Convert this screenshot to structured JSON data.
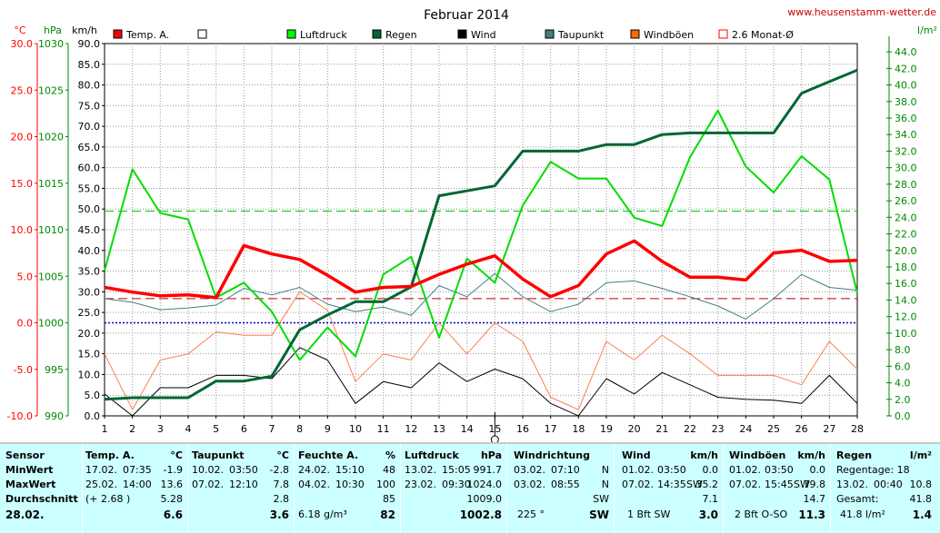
{
  "header": {
    "title": "Februar 2014",
    "website": "www.heusenstamm-wetter.de",
    "unit_celsius": "°C",
    "unit_hpa": "hPa",
    "unit_kmh": "km/h",
    "unit_rain": "l/m²"
  },
  "legend": [
    {
      "label": "Temp. A.",
      "color": "#ff0000",
      "type": "filled"
    },
    {
      "label": "",
      "color": "#ffffff",
      "type": "empty"
    },
    {
      "label": "Luftdruck",
      "color": "#00ff00",
      "type": "filled"
    },
    {
      "label": "Regen",
      "color": "#006633",
      "type": "filled"
    },
    {
      "label": "Wind",
      "color": "#000000",
      "type": "filled"
    },
    {
      "label": "Taupunkt",
      "color": "#408080",
      "type": "filled"
    },
    {
      "label": "Windböen",
      "color": "#ff6600",
      "type": "filled"
    },
    {
      "label": "2.6 Monat-Ø",
      "color": "#ff0000",
      "type": "outline"
    }
  ],
  "colors": {
    "temp": "#ff0000",
    "pressure": "#00dd00",
    "rain": "#006633",
    "wind": "#000000",
    "dewpoint": "#408080",
    "gusts": "#ff7f50",
    "avg_temp_line": "#c00000",
    "pressure_ref_line": "#00cc00",
    "zero_line": "#0000cc",
    "axis_temp": "#ff0000",
    "axis_pressure": "#008800",
    "axis_rain": "#008800",
    "stats_bg": "#ccffff"
  },
  "chart_data": {
    "type": "line",
    "x": [
      1,
      2,
      3,
      4,
      5,
      6,
      7,
      8,
      9,
      10,
      11,
      12,
      13,
      14,
      15,
      16,
      17,
      18,
      19,
      20,
      21,
      22,
      23,
      24,
      25,
      26,
      27,
      28
    ],
    "axes": {
      "temp_celsius": {
        "range": [
          -10,
          30
        ],
        "ticks": [
          "30.0",
          "25.0",
          "20.0",
          "15.0",
          "10.0",
          "5.0",
          "0.0",
          "-5.0",
          "-10.0"
        ]
      },
      "pressure_hpa": {
        "range": [
          990,
          1030
        ],
        "ticks": [
          "1030",
          "1025",
          "1020",
          "1015",
          "1010",
          "1005",
          "1000",
          "995",
          "990"
        ]
      },
      "wind_kmh": {
        "range": [
          0,
          90
        ],
        "ticks": [
          "90.0",
          "85.0",
          "80.0",
          "75.0",
          "70.0",
          "65.0",
          "60.0",
          "55.0",
          "50.0",
          "45.0",
          "40.0",
          "35.0",
          "30.0",
          "25.0",
          "20.0",
          "15.0",
          "10.0",
          "5.0",
          "0.0"
        ]
      },
      "rain_lm2": {
        "range": [
          0,
          45
        ],
        "ticks": [
          "44.0",
          "42.0",
          "40.0",
          "38.0",
          "36.0",
          "34.0",
          "32.0",
          "30.0",
          "28.0",
          "26.0",
          "24.0",
          "22.0",
          "20.0",
          "18.0",
          "16.0",
          "14.0",
          "12.0",
          "10.0",
          "8.0",
          "6.0",
          "4.0",
          "2.0",
          "0.0"
        ]
      }
    },
    "x_ticks": [
      "1",
      "2",
      "3",
      "4",
      "5",
      "6",
      "7",
      "8",
      "9",
      "10",
      "11",
      "12",
      "13",
      "14",
      "15",
      "16",
      "17",
      "18",
      "19",
      "20",
      "21",
      "22",
      "23",
      "24",
      "25",
      "26",
      "27",
      "28"
    ],
    "selected_day": 15,
    "reference_lines": {
      "monthly_avg_temp": 2.6,
      "pressure_ref": 1012,
      "zero_temp": 0
    },
    "series": [
      {
        "name": "Temp. A.",
        "axis": "temp_celsius",
        "values": [
          3.8,
          3.3,
          2.9,
          3.0,
          2.7,
          8.3,
          7.4,
          6.8,
          5.1,
          3.3,
          3.8,
          3.9,
          5.2,
          6.3,
          7.2,
          4.7,
          2.8,
          4.0,
          7.4,
          8.8,
          6.6,
          4.9,
          4.9,
          4.6,
          7.5,
          7.8,
          6.6,
          6.7
        ]
      },
      {
        "name": "Luftdruck",
        "axis": "pressure_hpa",
        "values": [
          1005.6,
          1016.5,
          1011.8,
          1011.1,
          1002.7,
          1004.3,
          1001.2,
          996.0,
          999.5,
          996.4,
          1005.2,
          1007.1,
          998.4,
          1006.9,
          1004.3,
          1012.6,
          1017.3,
          1015.5,
          1015.5,
          1011.3,
          1010.4,
          1017.8,
          1022.8,
          1016.8,
          1014.0,
          1017.9,
          1015.4,
          1003.2
        ]
      },
      {
        "name": "Regen",
        "axis": "rain_lm2",
        "values": [
          2.0,
          2.2,
          2.2,
          2.2,
          4.2,
          4.2,
          4.8,
          10.4,
          12.2,
          13.8,
          13.8,
          15.6,
          26.6,
          27.2,
          27.8,
          32.0,
          32.0,
          32.0,
          32.8,
          32.8,
          34.0,
          34.2,
          34.2,
          34.2,
          34.2,
          39.0,
          40.4,
          41.8
        ]
      },
      {
        "name": "Wind",
        "axis": "wind_kmh",
        "values": [
          5.3,
          0.0,
          6.8,
          6.8,
          9.8,
          9.8,
          9.0,
          16.5,
          13.5,
          3.0,
          8.3,
          6.8,
          12.8,
          8.3,
          11.3,
          9.0,
          3.0,
          0.0,
          9.0,
          5.3,
          10.5,
          7.5,
          4.5,
          4.0,
          3.8,
          3.0,
          9.8,
          3.0
        ]
      },
      {
        "name": "Taupunkt",
        "axis": "temp_celsius",
        "values": [
          2.6,
          2.2,
          1.4,
          1.6,
          1.9,
          3.7,
          3.0,
          3.8,
          2.0,
          1.2,
          1.7,
          0.8,
          4.0,
          2.8,
          5.3,
          2.8,
          1.2,
          2.0,
          4.3,
          4.5,
          3.7,
          2.8,
          1.8,
          0.4,
          2.6,
          5.2,
          3.8,
          3.5
        ]
      },
      {
        "name": "Windböen",
        "axis": "wind_kmh",
        "values": [
          15.0,
          1.5,
          13.5,
          15.0,
          20.3,
          19.5,
          19.5,
          30.0,
          25.5,
          8.3,
          15.0,
          13.5,
          22.5,
          15.0,
          22.5,
          18.0,
          4.5,
          1.5,
          18.0,
          13.5,
          19.5,
          15.0,
          9.8,
          9.8,
          9.8,
          7.5,
          18.0,
          11.3
        ]
      }
    ]
  },
  "stats": {
    "footer_date": "28.02.",
    "row_labels": {
      "sensor": "Sensor",
      "min": "MinWert",
      "max": "MaxWert",
      "avg": "Durchschnitt"
    },
    "temp": {
      "title": "Temp. A.",
      "unit": "°C",
      "min_date": "17.02.",
      "min_time": "07:35",
      "min_val": "-1.9",
      "max_date": "25.02.",
      "max_time": "14:00",
      "max_val": "13.6",
      "avg_extra": "(+ 2.68 )",
      "avg_val": "5.28",
      "current": "6.6"
    },
    "dew": {
      "title": "Taupunkt",
      "unit": "°C",
      "min_date": "10.02.",
      "min_time": "03:50",
      "min_val": "-2.8",
      "max_date": "07.02.",
      "max_time": "12:10",
      "max_val": "7.8",
      "avg_val": "2.8",
      "current": "3.6"
    },
    "hum": {
      "title": "Feuchte A.",
      "unit": "%",
      "min_date": "24.02.",
      "min_time": "15:10",
      "min_val": "48",
      "max_date": "04.02.",
      "max_time": "10:30",
      "max_val": "100",
      "avg_val": "85",
      "current_abs": "6.18 g/m³",
      "current": "82"
    },
    "press": {
      "title": "Luftdruck",
      "unit": "hPa",
      "min_date": "13.02.",
      "min_time": "15:05",
      "min_val": "991.7",
      "max_date": "23.02.",
      "max_time": "09:30",
      "max_val": "1024.0",
      "avg_val": "1009.0",
      "current": "1002.8"
    },
    "wdir": {
      "title": "Windrichtung",
      "min_date": "03.02.",
      "min_time": "07:10",
      "min_val": "N",
      "max_date": "03.02.",
      "max_time": "08:55",
      "max_val": "N",
      "avg_val": "SW",
      "current_deg": "225 °",
      "current": "SW"
    },
    "wind": {
      "title": "Wind",
      "unit": "km/h",
      "min_date": "01.02.",
      "min_time": "03:50",
      "min_val": "0.0",
      "max_date": "07.02.",
      "max_time": "14:35",
      "max_dir": "SW",
      "max_val": "35.2",
      "avg_val": "7.1",
      "current_bft": "1 Bft SW",
      "current": "3.0"
    },
    "gust": {
      "title": "Windböen",
      "unit": "km/h",
      "min_date": "01.02.",
      "min_time": "03:50",
      "min_val": "0.0",
      "max_date": "07.02.",
      "max_time": "15:45",
      "max_dir": "SW",
      "max_val": "79.8",
      "avg_val": "14.7",
      "current_bft": "2 Bft O-SO",
      "current": "11.3"
    },
    "rain": {
      "title": "Regen",
      "unit": "l/m²",
      "days_label": "Regentage: 18",
      "max_date": "13.02.",
      "max_time": "00:40",
      "max_val": "10.8",
      "total_label": "Gesamt:",
      "total_val": "41.8",
      "current_label": "41.8 l/m²",
      "current": "1.4"
    }
  }
}
